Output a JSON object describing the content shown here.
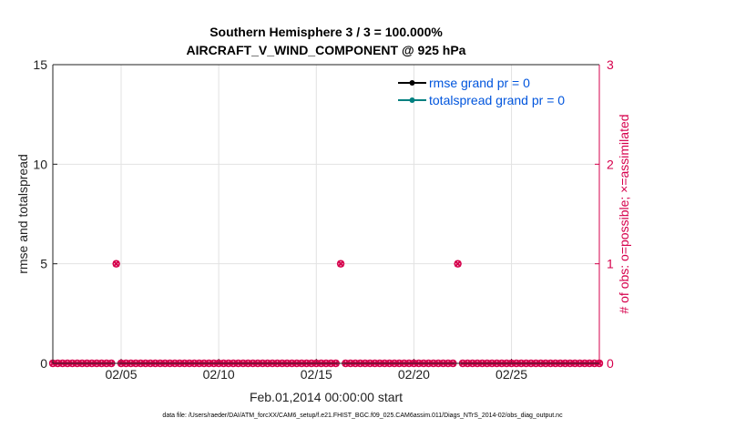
{
  "chart_data": {
    "type": "scatter",
    "title": "Southern Hemisphere 3 / 3 = 100.000%",
    "subtitle": "AIRCRAFT_V_WIND_COMPONENT @ 925 hPa",
    "xlabel": "Feb.01,2014 00:00:00 start",
    "ylabel_left": "rmse and totalspread",
    "ylabel_right": "# of obs: o=possible; ×=assimilated",
    "xlim": [
      0.5,
      28.5
    ],
    "ylim_left": [
      0,
      15
    ],
    "ylim_right": [
      0,
      3
    ],
    "x_ticks": [
      4,
      9,
      14,
      19,
      24
    ],
    "x_tick_labels": [
      "02/05",
      "02/10",
      "02/15",
      "02/20",
      "02/25"
    ],
    "y_ticks_left": [
      "0",
      "5",
      "10",
      "15"
    ],
    "y_ticks_right": [
      "0",
      "1",
      "2",
      "3"
    ],
    "grid": true,
    "legend_position": "top-right",
    "colors": {
      "rmse": "#000000",
      "totalspread": "#008080",
      "obs": "#d6004c",
      "legend_text": "#0055dd"
    },
    "series": [
      {
        "name": "rmse grand pr = 0",
        "axis": "left",
        "x": [],
        "y": []
      },
      {
        "name": "totalspread grand pr = 0",
        "axis": "left",
        "x": [],
        "y": []
      },
      {
        "axis": "right",
        "marker": "o",
        "x": [
          0.5,
          0.75,
          1.0,
          1.25,
          1.5,
          1.75,
          2.0,
          2.25,
          2.5,
          2.75,
          3.0,
          3.25,
          3.5,
          3.75,
          4.0,
          4.25,
          4.5,
          4.75,
          5.0,
          5.25,
          5.5,
          5.75,
          6.0,
          6.25,
          6.5,
          6.75,
          7.0,
          7.25,
          7.5,
          7.75,
          8.0,
          8.25,
          8.5,
          8.75,
          9.0,
          9.25,
          9.5,
          9.75,
          10.0,
          10.25,
          10.5,
          10.75,
          11.0,
          11.25,
          11.5,
          11.75,
          12.0,
          12.25,
          12.5,
          12.75,
          13.0,
          13.25,
          13.5,
          13.75,
          14.0,
          14.25,
          14.5,
          14.75,
          15.0,
          15.25,
          15.5,
          15.75,
          16.0,
          16.25,
          16.5,
          16.75,
          17.0,
          17.25,
          17.5,
          17.75,
          18.0,
          18.25,
          18.5,
          18.75,
          19.0,
          19.25,
          19.5,
          19.75,
          20.0,
          20.25,
          20.5,
          20.75,
          21.0,
          21.25,
          21.5,
          21.75,
          22.0,
          22.25,
          22.5,
          22.75,
          23.0,
          23.25,
          23.5,
          23.75,
          24.0,
          24.25,
          24.5,
          24.75,
          25.0,
          25.25,
          25.5,
          25.75,
          26.0,
          26.25,
          26.5,
          26.75,
          27.0,
          27.25,
          27.5,
          27.75,
          28.0,
          28.25,
          28.5
        ],
        "y": [
          0,
          0,
          0,
          0,
          0,
          0,
          0,
          0,
          0,
          0,
          0,
          0,
          0,
          1,
          0,
          0,
          0,
          0,
          0,
          0,
          0,
          0,
          0,
          0,
          0,
          0,
          0,
          0,
          0,
          0,
          0,
          0,
          0,
          0,
          0,
          0,
          0,
          0,
          0,
          0,
          0,
          0,
          0,
          0,
          0,
          0,
          0,
          0,
          0,
          0,
          0,
          0,
          0,
          0,
          0,
          0,
          0,
          0,
          0,
          1,
          0,
          0,
          0,
          0,
          0,
          0,
          0,
          0,
          0,
          0,
          0,
          0,
          0,
          0,
          0,
          0,
          0,
          0,
          0,
          0,
          0,
          0,
          0,
          1,
          0,
          0,
          0,
          0,
          0,
          0,
          0,
          0,
          0,
          0,
          0,
          0,
          0,
          0,
          0,
          0,
          0,
          0,
          0,
          0,
          0,
          0,
          0,
          0,
          0,
          0,
          0,
          0,
          0
        ]
      },
      {
        "axis": "right",
        "marker": "x",
        "x": [
          0.5,
          0.75,
          1.0,
          1.25,
          1.5,
          1.75,
          2.0,
          2.25,
          2.5,
          2.75,
          3.0,
          3.25,
          3.5,
          3.75,
          4.0,
          4.25,
          4.5,
          4.75,
          5.0,
          5.25,
          5.5,
          5.75,
          6.0,
          6.25,
          6.5,
          6.75,
          7.0,
          7.25,
          7.5,
          7.75,
          8.0,
          8.25,
          8.5,
          8.75,
          9.0,
          9.25,
          9.5,
          9.75,
          10.0,
          10.25,
          10.5,
          10.75,
          11.0,
          11.25,
          11.5,
          11.75,
          12.0,
          12.25,
          12.5,
          12.75,
          13.0,
          13.25,
          13.5,
          13.75,
          14.0,
          14.25,
          14.5,
          14.75,
          15.0,
          15.25,
          15.5,
          15.75,
          16.0,
          16.25,
          16.5,
          16.75,
          17.0,
          17.25,
          17.5,
          17.75,
          18.0,
          18.25,
          18.5,
          18.75,
          19.0,
          19.25,
          19.5,
          19.75,
          20.0,
          20.25,
          20.5,
          20.75,
          21.0,
          21.25,
          21.5,
          21.75,
          22.0,
          22.25,
          22.5,
          22.75,
          23.0,
          23.25,
          23.5,
          23.75,
          24.0,
          24.25,
          24.5,
          24.75,
          25.0,
          25.25,
          25.5,
          25.75,
          26.0,
          26.25,
          26.5,
          26.75,
          27.0,
          27.25,
          27.5,
          27.75,
          28.0,
          28.25,
          28.5
        ],
        "y": [
          0,
          0,
          0,
          0,
          0,
          0,
          0,
          0,
          0,
          0,
          0,
          0,
          0,
          1,
          0,
          0,
          0,
          0,
          0,
          0,
          0,
          0,
          0,
          0,
          0,
          0,
          0,
          0,
          0,
          0,
          0,
          0,
          0,
          0,
          0,
          0,
          0,
          0,
          0,
          0,
          0,
          0,
          0,
          0,
          0,
          0,
          0,
          0,
          0,
          0,
          0,
          0,
          0,
          0,
          0,
          0,
          0,
          0,
          0,
          1,
          0,
          0,
          0,
          0,
          0,
          0,
          0,
          0,
          0,
          0,
          0,
          0,
          0,
          0,
          0,
          0,
          0,
          0,
          0,
          0,
          0,
          0,
          0,
          1,
          0,
          0,
          0,
          0,
          0,
          0,
          0,
          0,
          0,
          0,
          0,
          0,
          0,
          0,
          0,
          0,
          0,
          0,
          0,
          0,
          0,
          0,
          0,
          0,
          0,
          0,
          0,
          0,
          0
        ]
      }
    ]
  },
  "footer": "data file: /Users/raeder/DAI/ATM_forcXX/CAM6_setup/f.e21.FHIST_BGC.f09_025.CAM6assim.011/Diags_NTrS_2014-02/obs_diag_output.nc"
}
